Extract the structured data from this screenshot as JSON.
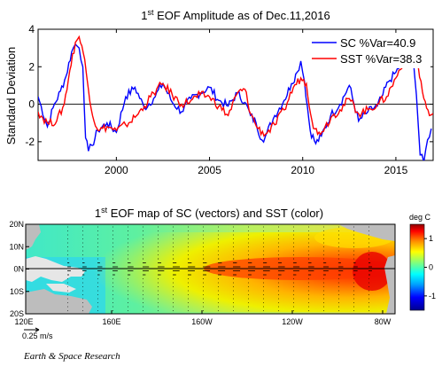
{
  "chart_data": [
    {
      "type": "line",
      "title": "1st EOF Amplitude as of Dec.11,2016",
      "title_base": "1",
      "title_sup": "st",
      "title_rest": " EOF Amplitude as of Dec.11,2016",
      "ylabel": "Standard Deviation",
      "xlim": [
        1995.8,
        2017.0
      ],
      "ylim": [
        -3,
        4
      ],
      "x_ticks": [
        2000,
        2005,
        2010,
        2015
      ],
      "y_ticks": [
        -2,
        0,
        2,
        4
      ],
      "zero_line": true,
      "legend_position": "top-right",
      "series": [
        {
          "name": "SC %Var=40.9",
          "color": "#0000ff",
          "x": [
            1995.8,
            1996.3,
            1996.6,
            1997.0,
            1997.3,
            1997.6,
            1997.8,
            1998.0,
            1998.2,
            1998.35,
            1998.5,
            1998.7,
            1999.0,
            1999.5,
            2000.0,
            2000.5,
            2001.0,
            2001.5,
            2002.0,
            2002.5,
            2003.0,
            2003.5,
            2004.0,
            2004.5,
            2005.0,
            2005.5,
            2006.0,
            2006.5,
            2006.9,
            2007.2,
            2007.5,
            2007.8,
            2008.0,
            2008.5,
            2009.0,
            2009.4,
            2009.7,
            2009.9,
            2010.1,
            2010.4,
            2010.7,
            2011.0,
            2011.5,
            2012.0,
            2012.5,
            2013.0,
            2013.5,
            2014.0,
            2014.3,
            2014.6,
            2015.0,
            2015.3,
            2015.6,
            2015.9,
            2016.1,
            2016.3,
            2016.5,
            2016.7,
            2016.9
          ],
          "y": [
            0.4,
            -1.2,
            -0.2,
            0.7,
            1.5,
            2.8,
            3.2,
            3.0,
            2.0,
            -1.8,
            -2.5,
            -2.2,
            -1.4,
            -1.0,
            -1.5,
            0.4,
            0.9,
            -0.2,
            0.3,
            1.1,
            0.1,
            -0.4,
            0.3,
            0.6,
            0.9,
            0.2,
            -0.1,
            0.6,
            0.1,
            -0.6,
            -1.0,
            -1.9,
            -1.7,
            -0.6,
            0.2,
            1.1,
            1.7,
            2.3,
            1.2,
            -1.4,
            -2.1,
            -1.7,
            -0.6,
            0.0,
            1.0,
            -0.9,
            -0.4,
            -0.1,
            0.5,
            1.2,
            1.7,
            2.2,
            2.5,
            2.8,
            0.5,
            -2.7,
            -3.1,
            -1.9,
            -1.3
          ]
        },
        {
          "name": "SST %Var=38.3",
          "color": "#ff0000",
          "x": [
            1995.8,
            1996.3,
            1996.8,
            1997.2,
            1997.5,
            1997.8,
            1998.0,
            1998.3,
            1998.5,
            1998.8,
            1999.1,
            1999.5,
            2000.0,
            2000.5,
            2001.0,
            2001.5,
            2002.0,
            2002.5,
            2003.0,
            2003.5,
            2004.0,
            2004.5,
            2005.0,
            2005.5,
            2006.0,
            2006.5,
            2006.9,
            2007.2,
            2007.6,
            2008.0,
            2008.5,
            2009.0,
            2009.5,
            2009.9,
            2010.2,
            2010.5,
            2010.8,
            2011.2,
            2011.6,
            2012.0,
            2012.5,
            2013.0,
            2013.5,
            2014.0,
            2014.5,
            2015.0,
            2015.4,
            2015.8,
            2016.0,
            2016.2,
            2016.5,
            2016.8,
            2017.0
          ],
          "y": [
            -0.4,
            -1.0,
            -0.9,
            0.0,
            1.8,
            3.3,
            3.6,
            2.4,
            0.8,
            -0.9,
            -1.4,
            -1.2,
            -1.4,
            -1.1,
            -0.7,
            -0.1,
            0.6,
            1.1,
            0.5,
            0.0,
            0.2,
            0.5,
            0.4,
            -0.1,
            -0.6,
            0.6,
            0.8,
            -0.5,
            -1.3,
            -1.6,
            -1.1,
            -0.3,
            0.9,
            1.4,
            1.1,
            -0.9,
            -1.6,
            -1.2,
            -0.6,
            -0.3,
            0.3,
            -0.5,
            -0.3,
            0.0,
            0.4,
            1.4,
            2.3,
            2.6,
            2.4,
            2.0,
            0.3,
            -0.6,
            -0.5
          ]
        }
      ]
    },
    {
      "type": "heatmap",
      "title_base": "1",
      "title_sup": "st",
      "title_rest": " EOF map of SC (vectors) and SST (color)",
      "x_ticks": [
        "120E",
        "160E",
        "160W",
        "120W",
        "80W"
      ],
      "y_ticks": [
        "20N",
        "10N",
        "0N",
        "10S",
        "20S"
      ],
      "colorbar": {
        "label": "deg C",
        "ticks": [
          "1",
          "0",
          "-1"
        ],
        "range": [
          -1.5,
          1.5
        ]
      },
      "vector_scale_label": "0.25 m/s"
    }
  ],
  "footer": {
    "credit": "Earth & Space Research"
  }
}
